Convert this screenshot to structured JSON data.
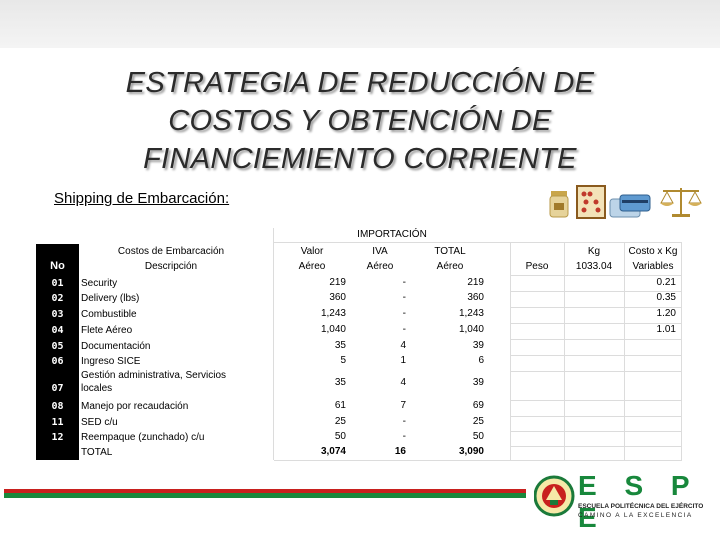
{
  "title_lines": [
    "ESTRATEGIA DE REDUCCIÓN DE",
    "COSTOS Y OBTENCIÓN DE",
    "FINANCIEMIENTO CORRIENTE"
  ],
  "subtitle": "Shipping de Embarcación:",
  "table": {
    "group_header": "IMPORTACIÓN",
    "header_desc_1": "Costos de Embarcación",
    "header_desc_2": "Descripción",
    "header_no": "No",
    "col_valor": [
      "Valor",
      "Aéreo"
    ],
    "col_iva": [
      "IVA",
      "Aéreo"
    ],
    "col_total": [
      "TOTAL",
      "Aéreo"
    ],
    "col_peso": "Peso",
    "col_kg": [
      "Kg",
      "1033.04"
    ],
    "col_costo": [
      "Costo x Kg",
      "Variables"
    ],
    "rows": [
      {
        "no": "01",
        "desc": "Security",
        "valor": "219",
        "iva": "-",
        "total": "219",
        "costo": "0.21"
      },
      {
        "no": "02",
        "desc": "Delivery (lbs)",
        "valor": "360",
        "iva": "-",
        "total": "360",
        "costo": "0.35"
      },
      {
        "no": "03",
        "desc": "Combustible",
        "valor": "1,243",
        "iva": "-",
        "total": "1,243",
        "costo": "1.20"
      },
      {
        "no": "04",
        "desc": "Flete Aéreo",
        "valor": "1,040",
        "iva": "-",
        "total": "1,040",
        "costo": "1.01"
      },
      {
        "no": "05",
        "desc": "Documentación",
        "valor": "35",
        "iva": "4",
        "total": "39",
        "costo": ""
      },
      {
        "no": "06",
        "desc": "Ingreso SICE",
        "valor": "5",
        "iva": "1",
        "total": "6",
        "costo": ""
      },
      {
        "no": "07",
        "desc": "Gestión administrativa, Servicios locales",
        "valor": "35",
        "iva": "4",
        "total": "39",
        "costo": ""
      },
      {
        "no": "08",
        "desc": "Manejo por recaudación",
        "valor": "61",
        "iva": "7",
        "total": "69",
        "costo": ""
      },
      {
        "no": "11",
        "desc": "SED c/u",
        "valor": "25",
        "iva": "-",
        "total": "25",
        "costo": ""
      },
      {
        "no": "12",
        "desc": "Reempaque (zunchado) c/u",
        "valor": "50",
        "iva": "-",
        "total": "50",
        "costo": ""
      }
    ],
    "total_row": {
      "desc": "TOTAL",
      "valor": "3,074",
      "iva": "16",
      "total": "3,090"
    }
  },
  "logo": {
    "wordmark": "E S P E",
    "line1": "ESCUELA POLITÉCNICA DEL EJÉRCITO",
    "line2": "CAMINO A LA EXCELENCIA",
    "colors": {
      "red": "#c8201e",
      "green": "#18883c"
    }
  },
  "icons": [
    "jar-icon",
    "abacus-icon",
    "card-icon",
    "scale-icon"
  ]
}
